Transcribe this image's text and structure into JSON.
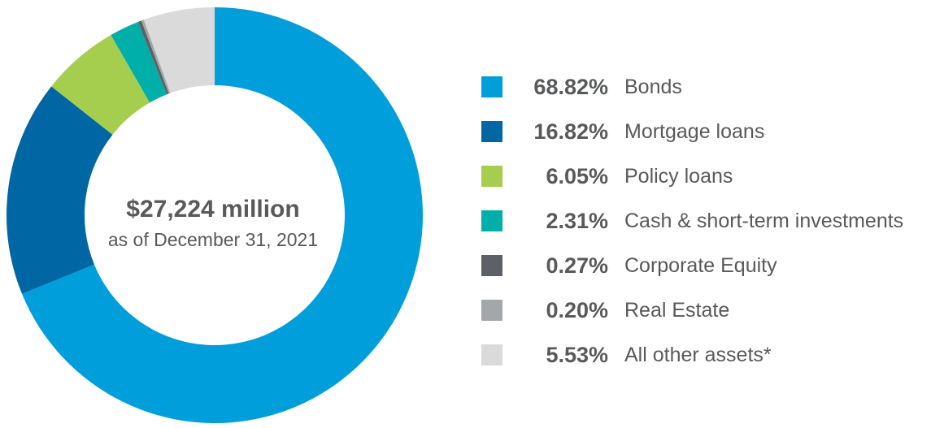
{
  "chart_data": {
    "type": "pie",
    "style": "donut",
    "center_amount": "$27,224 million",
    "center_date": "as of December 31, 2021",
    "categories": [
      "Bonds",
      "Mortgage loans",
      "Policy loans",
      "Cash & short-term investments",
      "Corporate Equity",
      "Real Estate",
      "All other assets*"
    ],
    "values": [
      68.82,
      16.82,
      6.05,
      2.31,
      0.27,
      0.2,
      5.53
    ],
    "value_labels": [
      "68.82%",
      "16.82%",
      "6.05%",
      "2.31%",
      "0.27%",
      "0.20%",
      "5.53%"
    ],
    "colors": [
      "#009edb",
      "#0066a4",
      "#a6ce4e",
      "#00afa9",
      "#5d6167",
      "#a4a7aa",
      "#d9dad9"
    ],
    "legend_position": "right"
  }
}
